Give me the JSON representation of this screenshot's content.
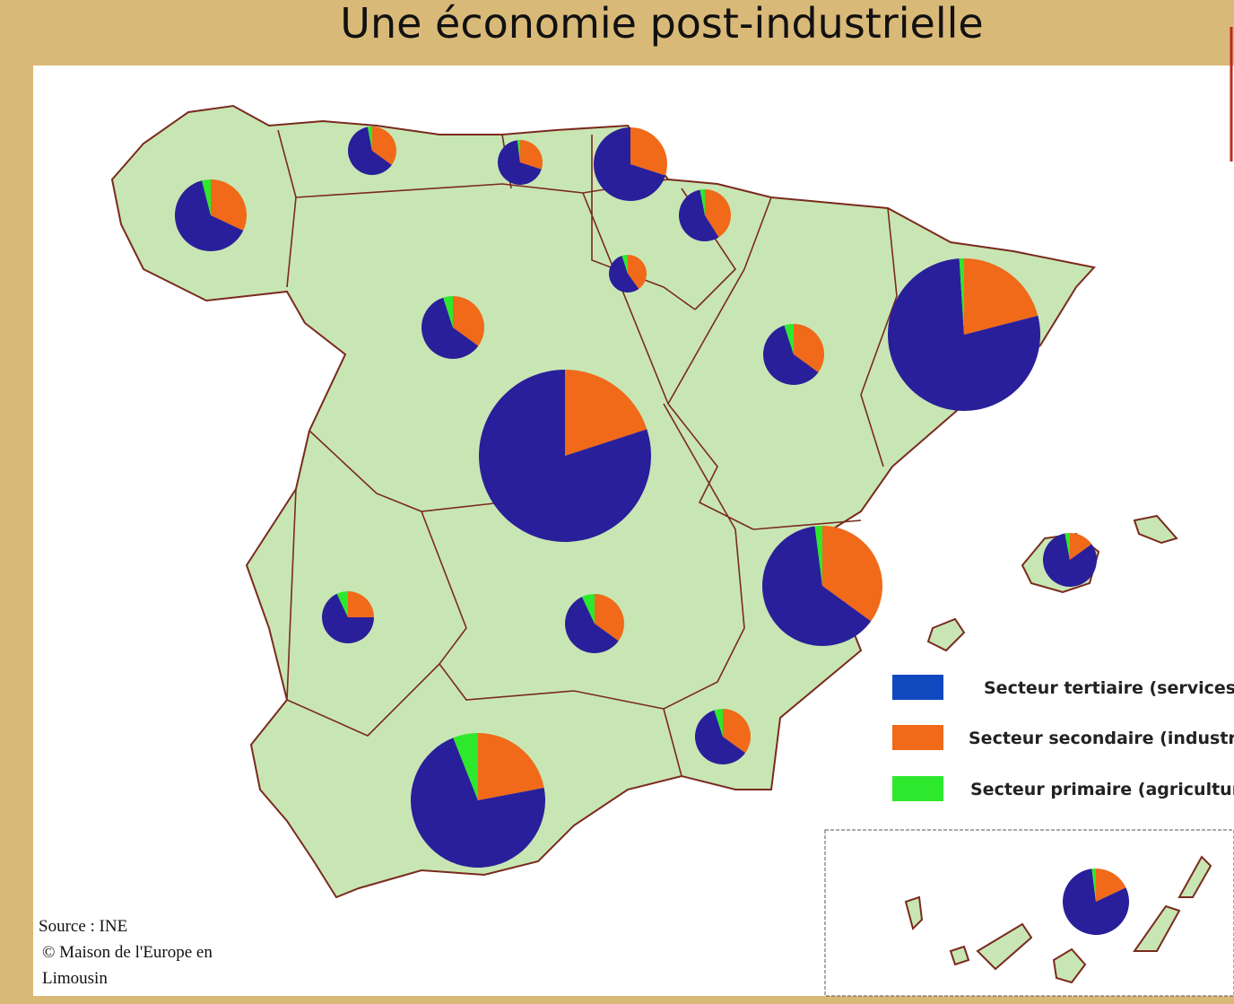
{
  "map": {
    "title": "Une  économie post-industrielle",
    "legend": [
      {
        "label": "Secteur tertiaire (services)",
        "color": "#1048c0"
      },
      {
        "label": "Secteur secondaire (industri",
        "color": "#f06a1a"
      },
      {
        "label": "Secteur primaire (agricultur",
        "color": "#2ee82e"
      }
    ],
    "pie_colors": [
      "#2a1f9a",
      "#f06a1a",
      "#2ee82e"
    ],
    "source": [
      "Source : INE",
      "© Maison de l'Europe en",
      "Limousin"
    ],
    "regions": [
      {
        "values": [
          64,
          32,
          4
        ]
      },
      {
        "values": [
          62,
          35,
          3
        ]
      },
      {
        "values": [
          68,
          30,
          2
        ]
      },
      {
        "values": [
          70,
          30,
          0
        ]
      },
      {
        "values": [
          56,
          41,
          3
        ]
      },
      {
        "values": [
          55,
          40,
          5
        ]
      },
      {
        "values": [
          60,
          35,
          5
        ]
      },
      {
        "values": [
          60,
          35,
          5
        ]
      },
      {
        "values": [
          78,
          21,
          1
        ]
      },
      {
        "values": [
          80,
          20,
          0
        ]
      },
      {
        "values": [
          63,
          35,
          2
        ]
      },
      {
        "values": [
          82,
          15,
          3
        ]
      },
      {
        "values": [
          68,
          25,
          7
        ]
      },
      {
        "values": [
          58,
          35,
          7
        ]
      },
      {
        "values": [
          60,
          35,
          5
        ]
      },
      {
        "values": [
          72,
          22,
          6
        ]
      },
      {
        "values": [
          80,
          18,
          2
        ]
      }
    ]
  }
}
